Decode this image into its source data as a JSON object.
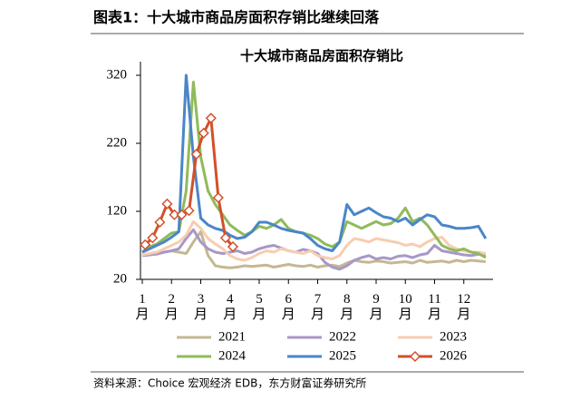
{
  "header": "图表1：十大城市商品房面积存销比继续回落",
  "source": "资料来源：Choice 宏观经济 EDB，东方财富证券研究所",
  "chart_data": {
    "type": "line",
    "title": "十大城市商品房面积存销比",
    "xlim": [
      1,
      13
    ],
    "xticks": [
      {
        "value": 1,
        "label": "1月"
      },
      {
        "value": 2,
        "label": "2月"
      },
      {
        "value": 3,
        "label": "3月"
      },
      {
        "value": 4,
        "label": "4月"
      },
      {
        "value": 5,
        "label": "5月"
      },
      {
        "value": 6,
        "label": "6月"
      },
      {
        "value": 7,
        "label": "7月"
      },
      {
        "value": 8,
        "label": "8月"
      },
      {
        "value": 9,
        "label": "9月"
      },
      {
        "value": 10,
        "label": "10月"
      },
      {
        "value": 11,
        "label": "11月"
      },
      {
        "value": 12,
        "label": "12月"
      }
    ],
    "ylim": [
      20,
      340
    ],
    "yticks": [
      20,
      120,
      220,
      320
    ],
    "grid": false,
    "x": [
      1,
      1.25,
      1.5,
      1.75,
      2,
      2.25,
      2.5,
      2.75,
      3,
      3.25,
      3.5,
      3.75,
      4,
      4.25,
      4.5,
      4.75,
      5,
      5.25,
      5.5,
      5.75,
      6,
      6.25,
      6.5,
      6.75,
      7,
      7.25,
      7.5,
      7.75,
      8,
      8.25,
      8.5,
      8.75,
      9,
      9.25,
      9.5,
      9.75,
      10,
      10.25,
      10.5,
      10.75,
      11,
      11.25,
      11.5,
      11.75,
      12,
      12.25,
      12.5,
      12.75
    ],
    "series": [
      {
        "name": "2021",
        "color": "#c4b893",
        "values": [
          55,
          56,
          57,
          60,
          62,
          60,
          58,
          75,
          90,
          55,
          40,
          38,
          37,
          38,
          40,
          39,
          40,
          41,
          38,
          40,
          42,
          40,
          39,
          41,
          38,
          40,
          41,
          39,
          44,
          48,
          46,
          45,
          47,
          46,
          44,
          45,
          46,
          44,
          48,
          45,
          46,
          47,
          45,
          48,
          46,
          48,
          47,
          46
        ]
      },
      {
        "name": "2022",
        "color": "#a897c8",
        "values": [
          55,
          56,
          58,
          60,
          62,
          65,
          80,
          93,
          75,
          65,
          60,
          58,
          60,
          62,
          58,
          60,
          65,
          68,
          70,
          66,
          62,
          60,
          64,
          62,
          58,
          45,
          38,
          35,
          40,
          48,
          52,
          55,
          50,
          52,
          50,
          54,
          55,
          52,
          56,
          58,
          70,
          62,
          60,
          58,
          56,
          55,
          57,
          55
        ]
      },
      {
        "name": "2023",
        "color": "#f7cdb0",
        "values": [
          56,
          58,
          60,
          65,
          70,
          75,
          85,
          105,
          95,
          80,
          72,
          65,
          55,
          50,
          48,
          52,
          58,
          62,
          60,
          65,
          62,
          60,
          58,
          62,
          55,
          52,
          50,
          55,
          70,
          80,
          78,
          75,
          80,
          78,
          76,
          74,
          70,
          72,
          68,
          75,
          80,
          82,
          70,
          65,
          62,
          60,
          60,
          58
        ]
      },
      {
        "name": "2024",
        "color": "#8fbb5a",
        "values": [
          60,
          68,
          72,
          80,
          88,
          90,
          150,
          310,
          200,
          150,
          130,
          115,
          100,
          92,
          85,
          90,
          98,
          95,
          100,
          108,
          95,
          90,
          88,
          85,
          80,
          72,
          68,
          75,
          105,
          100,
          95,
          100,
          105,
          100,
          102,
          110,
          125,
          105,
          110,
          100,
          85,
          70,
          65,
          62,
          65,
          60,
          58,
          52
        ]
      },
      {
        "name": "2025",
        "color": "#4a86c8",
        "values": [
          60,
          65,
          70,
          75,
          82,
          90,
          320,
          200,
          110,
          100,
          95,
          92,
          85,
          80,
          82,
          90,
          104,
          104,
          100,
          95,
          92,
          90,
          88,
          80,
          70,
          65,
          62,
          75,
          130,
          115,
          120,
          125,
          118,
          112,
          110,
          105,
          110,
          100,
          108,
          115,
          112,
          100,
          98,
          95,
          95,
          96,
          98,
          80
        ]
      },
      {
        "name": "2026",
        "color": "#d2502a",
        "marker": "diamond",
        "x": [
          1.1,
          1.35,
          1.6,
          1.85,
          2.1,
          2.35,
          2.6,
          2.85,
          3.1,
          3.35,
          3.6,
          3.85,
          4.1
        ],
        "values": [
          71,
          81,
          104,
          131,
          115,
          115,
          121,
          204,
          235,
          257,
          140,
          81,
          68
        ]
      }
    ]
  }
}
